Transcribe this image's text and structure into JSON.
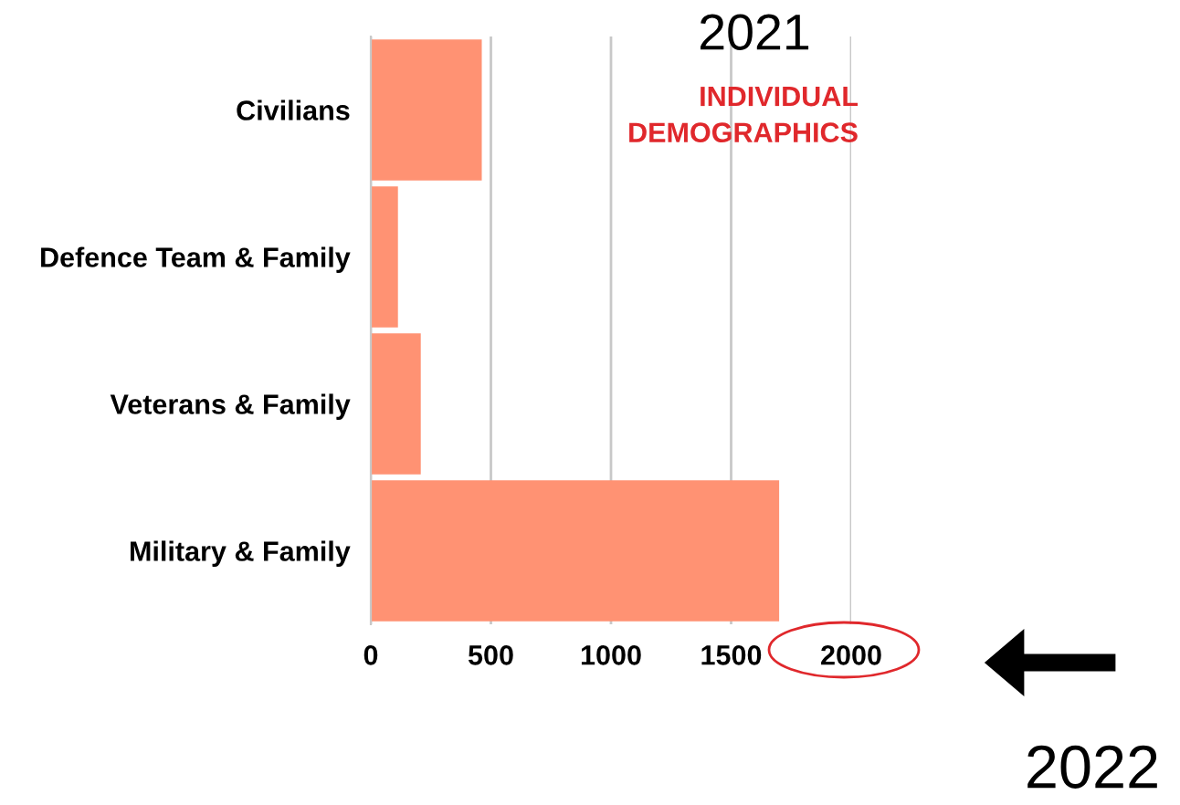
{
  "chart_data": {
    "type": "bar",
    "orientation": "horizontal",
    "title": "2021",
    "subtitle": "INDIVIDUAL\nDEMOGRAPHICS",
    "categories": [
      "Civilians",
      "Defence Team & Family",
      "Veterans & Family",
      "Military & Family"
    ],
    "values": [
      462,
      113,
      208,
      1700
    ],
    "color": "#ff9273",
    "xlim": [
      0,
      2000
    ],
    "xticks": [
      0,
      500,
      1000,
      1500,
      2000
    ],
    "grid": "x",
    "legend": false,
    "annotations": [
      "2022"
    ]
  }
}
